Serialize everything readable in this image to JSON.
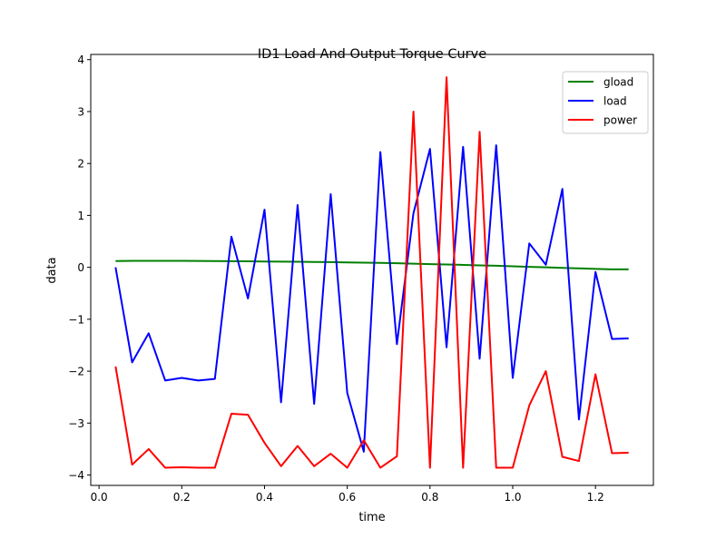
{
  "chart_data": {
    "type": "line",
    "title": "ID1 Load And Output Torque Curve",
    "xlabel": "time",
    "ylabel": "data",
    "xlim": [
      -0.02,
      1.34
    ],
    "ylim": [
      -4.2,
      4.1
    ],
    "xticks": [
      0.0,
      0.2,
      0.4,
      0.6,
      0.8,
      1.0,
      1.2
    ],
    "xtick_labels": [
      "0.0",
      "0.2",
      "0.4",
      "0.6",
      "0.8",
      "1.0",
      "1.2"
    ],
    "yticks": [
      -4,
      -3,
      -2,
      -1,
      0,
      1,
      2,
      3,
      4
    ],
    "ytick_labels": [
      "−4",
      "−3",
      "−2",
      "−1",
      "0",
      "1",
      "2",
      "3",
      "4"
    ],
    "grid": false,
    "legend_position": "top-right",
    "x": [
      0.04,
      0.08,
      0.12,
      0.16,
      0.2,
      0.24,
      0.28,
      0.32,
      0.36,
      0.4,
      0.44,
      0.48,
      0.52,
      0.56,
      0.6,
      0.64,
      0.68,
      0.72,
      0.76,
      0.8,
      0.84,
      0.88,
      0.92,
      0.96,
      1.0,
      1.04,
      1.08,
      1.12,
      1.16,
      1.2,
      1.24,
      1.28
    ],
    "series": [
      {
        "name": "gload",
        "color": "#008000",
        "values": [
          0.12,
          0.125,
          0.125,
          0.125,
          0.125,
          0.123,
          0.12,
          0.118,
          0.115,
          0.112,
          0.11,
          0.107,
          0.104,
          0.1,
          0.095,
          0.09,
          0.085,
          0.078,
          0.07,
          0.062,
          0.055,
          0.047,
          0.038,
          0.03,
          0.02,
          0.01,
          0.0,
          -0.01,
          -0.02,
          -0.03,
          -0.04,
          -0.04
        ]
      },
      {
        "name": "load",
        "color": "#0000ff",
        "values": [
          0.0,
          -1.83,
          -1.27,
          -2.18,
          -2.13,
          -2.18,
          -2.15,
          0.59,
          -0.6,
          1.11,
          -2.6,
          1.2,
          -2.63,
          1.41,
          -2.42,
          -3.55,
          2.22,
          -1.48,
          1.04,
          2.28,
          -1.54,
          2.32,
          -1.76,
          2.35,
          -2.13,
          0.46,
          0.05,
          1.51,
          -2.93,
          -0.09,
          -1.38,
          -1.37
        ]
      },
      {
        "name": "power",
        "color": "#ff0000",
        "values": [
          -1.91,
          -3.8,
          -3.5,
          -3.86,
          -3.85,
          -3.86,
          -3.86,
          -2.82,
          -2.84,
          -3.38,
          -3.83,
          -3.44,
          -3.83,
          -3.59,
          -3.86,
          -3.33,
          -3.86,
          -3.64,
          3.0,
          -3.86,
          3.66,
          -3.86,
          2.61,
          -3.86,
          -3.86,
          -2.66,
          -2.0,
          -3.65,
          -3.73,
          -2.06,
          -3.58,
          -3.57
        ]
      }
    ]
  }
}
